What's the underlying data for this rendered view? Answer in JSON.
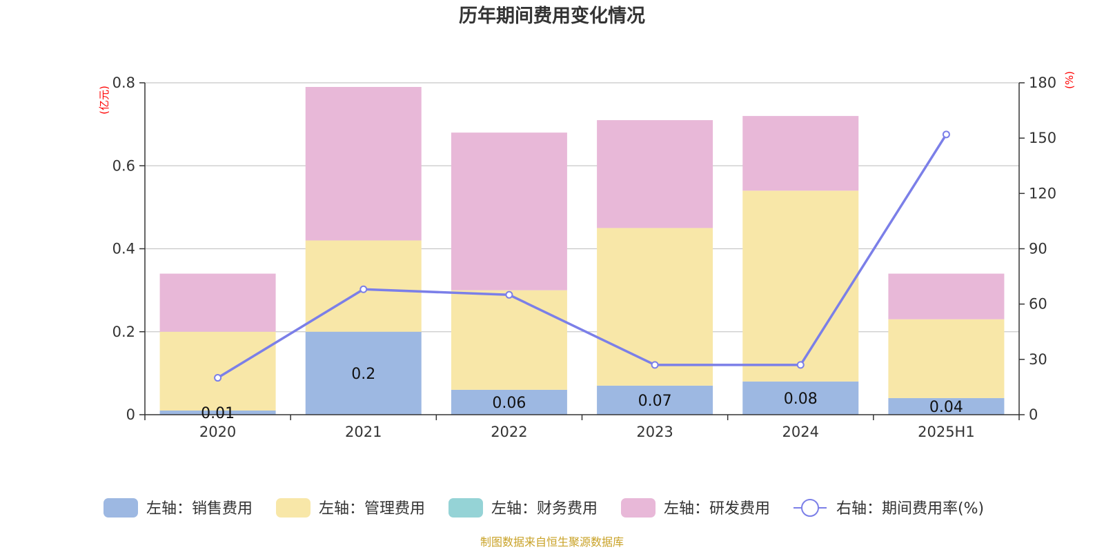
{
  "chart_data": {
    "type": "bar",
    "title": "历年期间费用变化情况",
    "categories": [
      "2020",
      "2021",
      "2022",
      "2023",
      "2024",
      "2025H1"
    ],
    "series": [
      {
        "name": "销售费用",
        "legend": "左轴：销售费用",
        "axis": "left",
        "color": "#9db8e2",
        "values": [
          0.01,
          0.2,
          0.06,
          0.07,
          0.08,
          0.04
        ],
        "labels": [
          "0.01",
          "0.2",
          "0.06",
          "0.07",
          "0.08",
          "0.04"
        ]
      },
      {
        "name": "管理费用",
        "legend": "左轴：管理费用",
        "axis": "left",
        "color": "#f8e7a8",
        "values": [
          0.19,
          0.22,
          0.24,
          0.38,
          0.46,
          0.19
        ]
      },
      {
        "name": "财务费用",
        "legend": "左轴：财务费用",
        "axis": "left",
        "color": "#95d3d6",
        "values": [
          0,
          0,
          0,
          0,
          0,
          0
        ]
      },
      {
        "name": "研发费用",
        "legend": "左轴：研发费用",
        "axis": "left",
        "color": "#e8b8d8",
        "values": [
          0.14,
          0.37,
          0.38,
          0.26,
          0.18,
          0.11
        ]
      },
      {
        "name": "期间费用率(%)",
        "legend": "右轴：期间费用率(%)",
        "axis": "right",
        "type": "line",
        "color": "#7b7fe8",
        "values": [
          20,
          68,
          65,
          27,
          27,
          152
        ]
      }
    ],
    "left_axis": {
      "unit": "(亿元)",
      "ylim": [
        0,
        0.8
      ],
      "ticks": [
        "0",
        "0.2",
        "0.4",
        "0.6",
        "0.8"
      ]
    },
    "right_axis": {
      "unit": "(%)",
      "ylim": [
        0,
        180
      ],
      "ticks": [
        "0",
        "30",
        "60",
        "90",
        "120",
        "150",
        "180"
      ]
    },
    "grid": true,
    "legend_position": "bottom",
    "source": "制图数据来自恒生聚源数据库"
  }
}
